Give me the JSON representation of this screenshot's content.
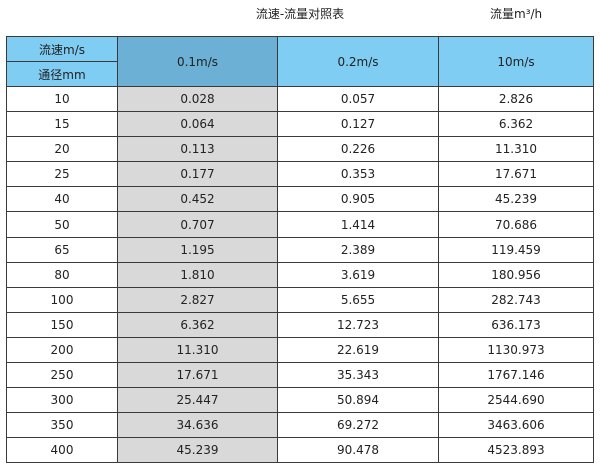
{
  "title": "流速-流量对照表",
  "unit_label": "流量m³/h",
  "header": {
    "velocity_label": "流速m/s",
    "diameter_label": "通径mm",
    "columns": [
      "0.1m/s",
      "0.2m/s",
      "10m/s"
    ]
  },
  "colors": {
    "header": "#7fcdf3",
    "selected_header": "#6cb0d5",
    "highlight_column": "#d9d9d9"
  },
  "rows": [
    [
      "10",
      "0.028",
      "0.057",
      "2.826"
    ],
    [
      "15",
      "0.064",
      "0.127",
      "6.362"
    ],
    [
      "20",
      "0.113",
      "0.226",
      "11.310"
    ],
    [
      "25",
      "0.177",
      "0.353",
      "17.671"
    ],
    [
      "40",
      "0.452",
      "0.905",
      "45.239"
    ],
    [
      "50",
      "0.707",
      "1.414",
      "70.686"
    ],
    [
      "65",
      "1.195",
      "2.389",
      "119.459"
    ],
    [
      "80",
      "1.810",
      "3.619",
      "180.956"
    ],
    [
      "100",
      "2.827",
      "5.655",
      "282.743"
    ],
    [
      "150",
      "6.362",
      "12.723",
      "636.173"
    ],
    [
      "200",
      "11.310",
      "22.619",
      "1130.973"
    ],
    [
      "250",
      "17.671",
      "35.343",
      "1767.146"
    ],
    [
      "300",
      "25.447",
      "50.894",
      "2544.690"
    ],
    [
      "350",
      "34.636",
      "69.272",
      "3463.606"
    ],
    [
      "400",
      "45.239",
      "90.478",
      "4523.893"
    ]
  ]
}
